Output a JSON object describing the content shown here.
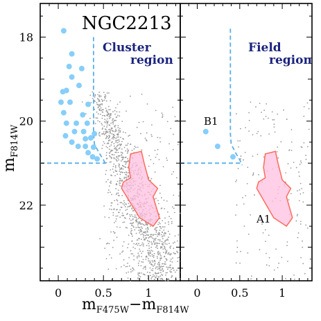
{
  "colors": {
    "member_points": "#87cefa",
    "field_points": "#999999",
    "isochrone": "#5aaee8",
    "box_fill": "#ffc0e0",
    "box_stroke": "#ff6a5a",
    "region_text": "#1a237e"
  },
  "chart_data": [
    {
      "type": "scatter",
      "panel": "left",
      "title": "NGC2213",
      "region_label_line1": "Cluster",
      "region_label_line2": "region",
      "xlabel_main": "m",
      "xlabel_sub1": "F475W",
      "xlabel_sep": "−m",
      "xlabel_sub2": "F814W",
      "ylabel_main": "m",
      "ylabel_sub": "F814W",
      "xlim": [
        -0.2,
        1.35
      ],
      "ylim": [
        23.8,
        17.2
      ],
      "y_inverted": true,
      "xticks": [
        0,
        0.5,
        1
      ],
      "xtick_labels": [
        "0",
        "0.5",
        "1"
      ],
      "yticks": [
        18,
        20,
        22
      ],
      "ytick_labels": [
        "18",
        "20",
        "22"
      ],
      "blue_stragglers": [
        {
          "x": 0.06,
          "y": 17.85
        },
        {
          "x": 0.15,
          "y": 18.4
        },
        {
          "x": 0.12,
          "y": 18.7
        },
        {
          "x": 0.15,
          "y": 18.95
        },
        {
          "x": 0.26,
          "y": 18.75
        },
        {
          "x": 0.23,
          "y": 19.15
        },
        {
          "x": 0.05,
          "y": 19.3
        },
        {
          "x": 0.09,
          "y": 19.27
        },
        {
          "x": 0.13,
          "y": 19.55
        },
        {
          "x": 0.03,
          "y": 19.55
        },
        {
          "x": 0.33,
          "y": 19.6
        },
        {
          "x": 0.27,
          "y": 19.85
        },
        {
          "x": 0.06,
          "y": 19.8
        },
        {
          "x": 0.09,
          "y": 20.05
        },
        {
          "x": 0.2,
          "y": 20.05
        },
        {
          "x": 0.32,
          "y": 20.05
        },
        {
          "x": 0.18,
          "y": 20.25
        },
        {
          "x": 0.28,
          "y": 20.25
        },
        {
          "x": 0.4,
          "y": 20.3
        },
        {
          "x": 0.08,
          "y": 20.35
        },
        {
          "x": 0.3,
          "y": 20.42
        },
        {
          "x": 0.36,
          "y": 20.4
        },
        {
          "x": 0.15,
          "y": 20.5
        },
        {
          "x": 0.22,
          "y": 20.6
        },
        {
          "x": 0.3,
          "y": 20.6
        },
        {
          "x": 0.39,
          "y": 20.62
        },
        {
          "x": 0.33,
          "y": 20.75
        },
        {
          "x": 0.38,
          "y": 20.85
        },
        {
          "x": 0.43,
          "y": 20.9
        }
      ],
      "isochrone": [
        {
          "x": 0.39,
          "y": 18.0
        },
        {
          "x": 0.39,
          "y": 20.3
        },
        {
          "x": 0.4,
          "y": 20.55
        },
        {
          "x": 0.45,
          "y": 20.75
        },
        {
          "x": 0.5,
          "y": 20.92
        },
        {
          "x": 0.53,
          "y": 21.05
        }
      ],
      "equal_mass_line": {
        "x": [
          -0.2,
          0.53
        ],
        "y": 21.0
      },
      "selection_box": [
        {
          "x": 0.8,
          "y": 20.78
        },
        {
          "x": 0.92,
          "y": 20.72
        },
        {
          "x": 0.95,
          "y": 21.0
        },
        {
          "x": 1.0,
          "y": 21.4
        },
        {
          "x": 1.1,
          "y": 21.6
        },
        {
          "x": 1.05,
          "y": 21.8
        },
        {
          "x": 1.12,
          "y": 22.3
        },
        {
          "x": 1.05,
          "y": 22.5
        },
        {
          "x": 0.9,
          "y": 22.3
        },
        {
          "x": 0.7,
          "y": 21.6
        },
        {
          "x": 0.72,
          "y": 21.45
        },
        {
          "x": 0.8,
          "y": 21.35
        },
        {
          "x": 0.78,
          "y": 21.1
        }
      ],
      "field_star_count": 1400
    },
    {
      "type": "scatter",
      "panel": "right",
      "region_label_line1": "Field",
      "region_label_line2": "region",
      "annotation_b1": "B1",
      "annotation_a1": "A1",
      "xlim": [
        -0.2,
        1.35
      ],
      "ylim": [
        23.8,
        17.2
      ],
      "y_inverted": true,
      "xticks": [
        0,
        0.5,
        1
      ],
      "xtick_labels": [
        "0",
        "0.5",
        "1"
      ],
      "blue_stragglers": [
        {
          "x": 0.1,
          "y": 20.25
        },
        {
          "x": 0.24,
          "y": 20.6
        },
        {
          "x": 0.42,
          "y": 20.85
        }
      ],
      "isochrone": [
        {
          "x": 0.39,
          "y": 17.8
        },
        {
          "x": 0.39,
          "y": 20.3
        },
        {
          "x": 0.4,
          "y": 20.55
        },
        {
          "x": 0.45,
          "y": 20.75
        },
        {
          "x": 0.5,
          "y": 20.92
        },
        {
          "x": 0.53,
          "y": 21.05
        }
      ],
      "equal_mass_line": {
        "x": [
          -0.2,
          0.53
        ],
        "y": 21.0
      },
      "selection_box": [
        {
          "x": 0.8,
          "y": 20.78
        },
        {
          "x": 0.92,
          "y": 20.72
        },
        {
          "x": 0.95,
          "y": 21.0
        },
        {
          "x": 1.0,
          "y": 21.4
        },
        {
          "x": 1.1,
          "y": 21.6
        },
        {
          "x": 1.05,
          "y": 21.8
        },
        {
          "x": 1.12,
          "y": 22.3
        },
        {
          "x": 1.05,
          "y": 22.5
        },
        {
          "x": 0.9,
          "y": 22.3
        },
        {
          "x": 0.7,
          "y": 21.6
        },
        {
          "x": 0.72,
          "y": 21.45
        },
        {
          "x": 0.8,
          "y": 21.35
        },
        {
          "x": 0.78,
          "y": 21.1
        }
      ],
      "field_star_count": 160
    }
  ]
}
